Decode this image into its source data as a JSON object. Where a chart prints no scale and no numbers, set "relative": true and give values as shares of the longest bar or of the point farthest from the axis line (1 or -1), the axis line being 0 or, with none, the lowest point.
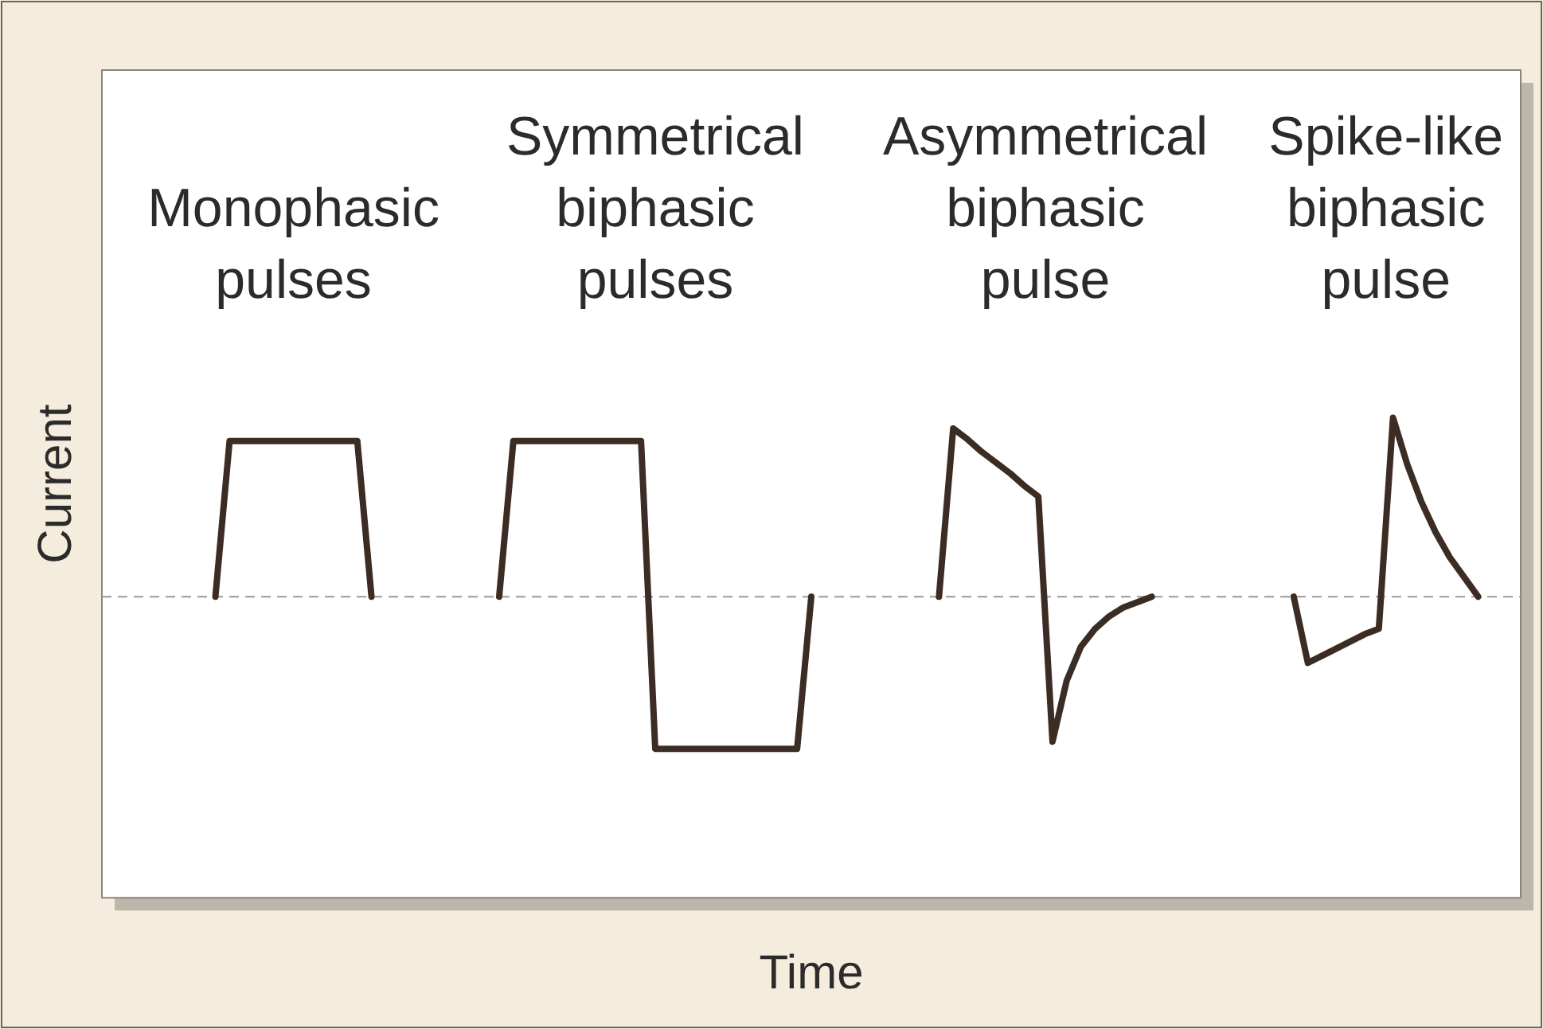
{
  "chart_data": {
    "type": "line",
    "relative": true,
    "xlabel": "Time",
    "ylabel": "Current",
    "categories": [
      null,
      null,
      null,
      null,
      null,
      null,
      null,
      null,
      null,
      null,
      null,
      null,
      null,
      null,
      null,
      null,
      null,
      null,
      null,
      null,
      null,
      null,
      null,
      null,
      null,
      null,
      null,
      null,
      null,
      null,
      null,
      null,
      null,
      null,
      null,
      null,
      null,
      null,
      null,
      null,
      null,
      null,
      null,
      null,
      null,
      null,
      null,
      null,
      null,
      null,
      null,
      null,
      null,
      null,
      null,
      null,
      null,
      null,
      null,
      null,
      null,
      null,
      null,
      null,
      null,
      null,
      null,
      null,
      null,
      null,
      null,
      null,
      null,
      null,
      null,
      null,
      null,
      null,
      null,
      null,
      null,
      null,
      null,
      null,
      null,
      null,
      null,
      null,
      null,
      null,
      null,
      null,
      null,
      null,
      null,
      null,
      null,
      null,
      null,
      null,
      null
    ],
    "grid": false,
    "legend": false,
    "marker": "none",
    "line_style": "solid",
    "series": [
      {
        "color": "#3b2d24",
        "values": [
          null,
          null,
          null,
          null,
          null,
          null,
          null,
          null,
          0,
          0.87,
          0.87,
          0.87,
          0.87,
          0.87,
          0.87,
          0.87,
          0.87,
          0.87,
          0.87,
          0,
          null,
          null,
          null,
          null,
          null,
          null,
          null,
          null,
          null,
          null,
          null,
          null,
          null,
          null,
          null,
          null,
          null,
          null,
          null,
          null,
          null,
          null,
          null,
          null,
          null,
          null,
          null,
          null,
          null,
          null,
          null,
          null,
          null,
          null,
          null,
          null,
          null,
          null,
          null,
          null,
          null,
          null,
          null,
          null,
          null,
          null,
          null,
          null,
          null,
          null,
          null,
          null,
          null,
          null,
          null,
          null,
          null,
          null,
          null,
          null,
          null,
          null,
          null,
          null,
          null,
          null,
          null,
          null,
          null,
          null,
          null,
          null,
          null,
          null,
          null,
          null,
          null,
          null,
          null,
          null,
          null
        ]
      },
      {
        "color": "#3b2d24",
        "values": [
          null,
          null,
          null,
          null,
          null,
          null,
          null,
          null,
          null,
          null,
          null,
          null,
          null,
          null,
          null,
          null,
          null,
          null,
          null,
          null,
          null,
          null,
          null,
          null,
          null,
          null,
          null,
          null,
          0,
          0.87,
          0.87,
          0.87,
          0.87,
          0.87,
          0.87,
          0.87,
          0.87,
          0.87,
          0.87,
          -0.85,
          -0.85,
          -0.85,
          -0.85,
          -0.85,
          -0.85,
          -0.85,
          -0.85,
          -0.85,
          -0.85,
          -0.85,
          0,
          null,
          null,
          null,
          null,
          null,
          null,
          null,
          null,
          null,
          null,
          null,
          null,
          null,
          null,
          null,
          null,
          null,
          null,
          null,
          null,
          null,
          null,
          null,
          null,
          null,
          null,
          null,
          null,
          null,
          null,
          null,
          null,
          null,
          null,
          null,
          null,
          null,
          null,
          null,
          null,
          null,
          null,
          null,
          null,
          null,
          null,
          null,
          null,
          null,
          null
        ]
      },
      {
        "color": "#3b2d24",
        "values": [
          null,
          null,
          null,
          null,
          null,
          null,
          null,
          null,
          null,
          null,
          null,
          null,
          null,
          null,
          null,
          null,
          null,
          null,
          null,
          null,
          null,
          null,
          null,
          null,
          null,
          null,
          null,
          null,
          null,
          null,
          null,
          null,
          null,
          null,
          null,
          null,
          null,
          null,
          null,
          null,
          null,
          null,
          null,
          null,
          null,
          null,
          null,
          null,
          null,
          null,
          null,
          null,
          null,
          null,
          null,
          null,
          null,
          null,
          null,
          0,
          0.94,
          0.88,
          0.81,
          0.75,
          0.69,
          0.62,
          0.56,
          -0.81,
          -0.47,
          -0.28,
          -0.18,
          -0.11,
          -0.06,
          -0.03,
          0,
          null,
          null,
          null,
          null,
          null,
          null,
          null,
          null,
          null,
          null,
          null,
          null,
          null,
          null,
          null,
          null,
          null,
          null,
          null,
          null,
          null,
          null,
          null,
          null,
          null,
          null
        ]
      },
      {
        "color": "#3b2d24",
        "values": [
          null,
          null,
          null,
          null,
          null,
          null,
          null,
          null,
          null,
          null,
          null,
          null,
          null,
          null,
          null,
          null,
          null,
          null,
          null,
          null,
          null,
          null,
          null,
          null,
          null,
          null,
          null,
          null,
          null,
          null,
          null,
          null,
          null,
          null,
          null,
          null,
          null,
          null,
          null,
          null,
          null,
          null,
          null,
          null,
          null,
          null,
          null,
          null,
          null,
          null,
          null,
          null,
          null,
          null,
          null,
          null,
          null,
          null,
          null,
          null,
          null,
          null,
          null,
          null,
          null,
          null,
          null,
          null,
          null,
          null,
          null,
          null,
          null,
          null,
          null,
          null,
          null,
          null,
          null,
          null,
          null,
          null,
          null,
          null,
          0,
          -0.37,
          -0.33,
          -0.29,
          -0.25,
          -0.21,
          -0.18,
          1,
          0.74,
          0.53,
          0.36,
          0.22,
          0.11,
          0,
          null,
          null,
          null
        ]
      }
    ],
    "ref_lines": [
      {
        "axis": "y",
        "value": 0,
        "color": "#999999",
        "line_style": "dashed"
      }
    ],
    "annotations": [
      "Monophasic pulses",
      "Symmetrical biphasic pulses",
      "Asymmetrical biphasic pulse",
      "Spike-like biphasic pulse"
    ]
  }
}
